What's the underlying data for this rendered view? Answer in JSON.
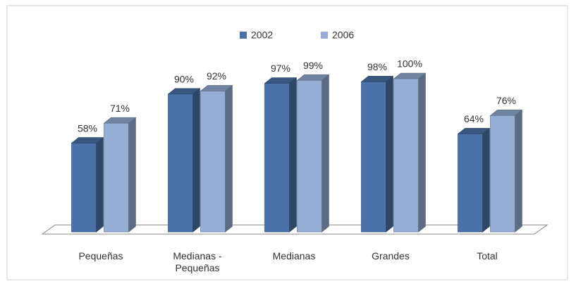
{
  "chart_data": {
    "type": "bar3d",
    "categories": [
      "Pequeñas",
      "Medianas - Pequeñas",
      "Medianas",
      "Grandes",
      "Total"
    ],
    "series": [
      {
        "name": "2002",
        "color": "#4a72a8",
        "values": [
          58,
          90,
          97,
          98,
          64
        ],
        "value_labels": [
          "58%",
          "90%",
          "97%",
          "98%",
          "64%"
        ]
      },
      {
        "name": "2006",
        "color": "#95aed6",
        "values": [
          71,
          92,
          99,
          100,
          76
        ],
        "value_labels": [
          "71%",
          "92%",
          "99%",
          "100%",
          "76%"
        ]
      }
    ],
    "legend": "top"
  }
}
